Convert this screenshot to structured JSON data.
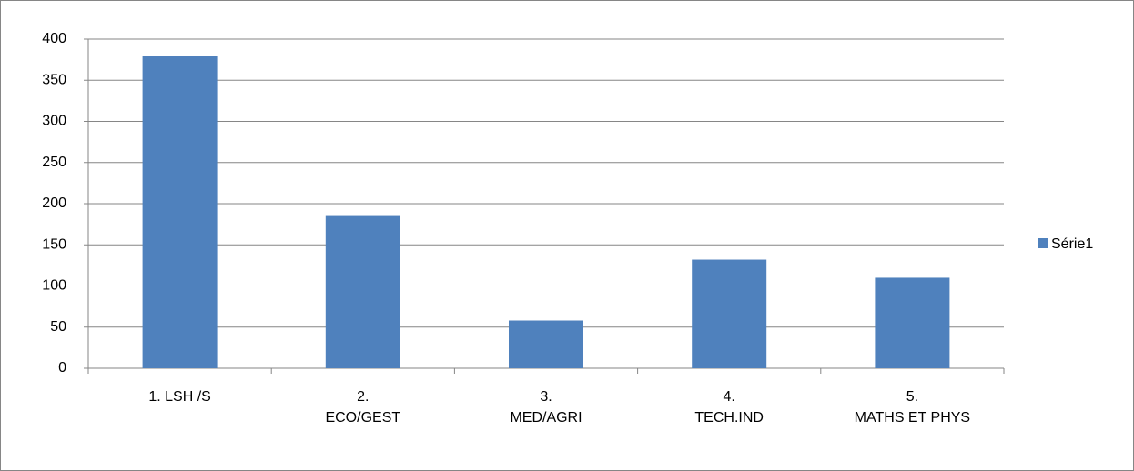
{
  "chart_data": {
    "type": "bar",
    "categories": [
      "1. LSH /S",
      "2.\nECO/GEST",
      "3.\nMED/AGRI",
      "4.\nTECH.IND",
      "5.\nMATHS ET PHYS"
    ],
    "series": [
      {
        "name": "Série1",
        "color": "#4f81bd",
        "values": [
          379,
          185,
          58,
          132,
          110
        ]
      }
    ],
    "ylim": [
      0,
      400
    ],
    "yticks": [
      0,
      50,
      100,
      150,
      200,
      250,
      300,
      350,
      400
    ],
    "grid": true,
    "legend": "right"
  }
}
